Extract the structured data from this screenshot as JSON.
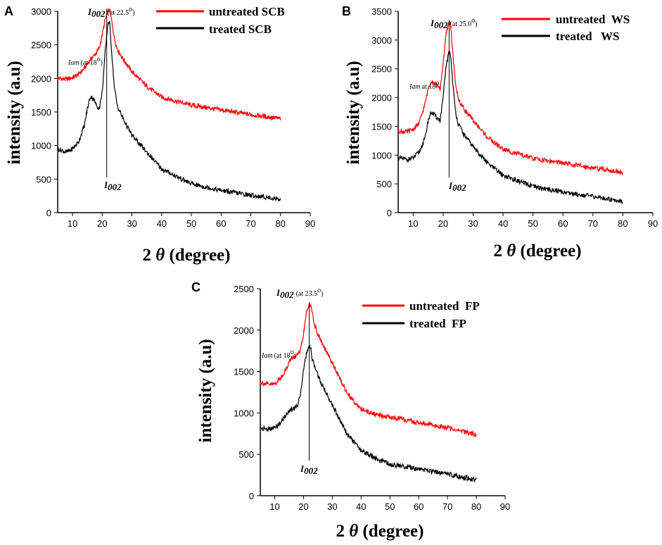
{
  "colors": {
    "untreated": "#ff0000",
    "treated": "#000000"
  },
  "chart_data": [
    {
      "panel": "A",
      "type": "line",
      "xlabel": "2 θ (degree)",
      "ylabel": "intensity (a.u)",
      "xlim": [
        5,
        90
      ],
      "ylim": [
        0,
        3000
      ],
      "xticks": [
        10,
        20,
        30,
        40,
        50,
        60,
        70,
        80,
        90
      ],
      "yticks": [
        0,
        500,
        1000,
        1500,
        2000,
        2500,
        3000
      ],
      "legend_position": "top-right",
      "series": [
        {
          "name": "untreated SCB",
          "color": "#ff0000",
          "x": [
            5,
            8,
            10,
            12,
            14,
            16,
            18,
            19,
            20,
            21,
            22,
            22.5,
            23,
            24,
            25,
            27,
            30,
            35,
            40,
            45,
            50,
            60,
            70,
            80
          ],
          "y": [
            2000,
            1990,
            2010,
            2060,
            2150,
            2280,
            2380,
            2450,
            2650,
            2880,
            3000,
            3020,
            2900,
            2620,
            2440,
            2290,
            2100,
            1880,
            1720,
            1660,
            1600,
            1530,
            1460,
            1400
          ]
        },
        {
          "name": "treated  SCB",
          "color": "#000000",
          "x": [
            5,
            8,
            10,
            12,
            14,
            15,
            16,
            17,
            18,
            19,
            20,
            21,
            22,
            22.5,
            23,
            24,
            25,
            27,
            30,
            35,
            40,
            45,
            50,
            60,
            70,
            80
          ],
          "y": [
            950,
            900,
            950,
            1050,
            1300,
            1550,
            1730,
            1700,
            1600,
            1550,
            1800,
            2400,
            2850,
            2820,
            2500,
            1900,
            1600,
            1400,
            1150,
            900,
            650,
            540,
            430,
            330,
            260,
            200
          ]
        }
      ],
      "annotations": {
        "peak_main": "I",
        "peak_sub": "002",
        "peak_note": "(at 22.5",
        "amorphous_main": "Iam",
        "amorphous_note": "(at 18",
        "bottom_main": "I",
        "bottom_sub": "002",
        "degree_symbol": "o",
        "close_paren": ")"
      },
      "peak_x": 21.5,
      "amorphous_label_at": [
        17,
        2400
      ]
    },
    {
      "panel": "B",
      "type": "line",
      "xlabel": "2 θ (degree)",
      "ylabel": "intensity (a.u)",
      "xlim": [
        5,
        90
      ],
      "ylim": [
        0,
        3500
      ],
      "xticks": [
        10,
        20,
        30,
        40,
        50,
        60,
        70,
        80,
        90
      ],
      "yticks": [
        0,
        500,
        1000,
        1500,
        2000,
        2500,
        3000,
        3500
      ],
      "legend_position": "top-right",
      "series": [
        {
          "name": "untreated  WS",
          "color": "#ff0000",
          "x": [
            5,
            8,
            10,
            12,
            14,
            15,
            16,
            17,
            18,
            19,
            20,
            21,
            22,
            22.5,
            23,
            24,
            25,
            27,
            30,
            35,
            40,
            50,
            60,
            70,
            80
          ],
          "y": [
            1420,
            1400,
            1450,
            1550,
            1900,
            2150,
            2300,
            2250,
            2200,
            2150,
            2600,
            3100,
            3320,
            3280,
            2900,
            2300,
            1980,
            1800,
            1600,
            1300,
            1100,
            940,
            860,
            780,
            700
          ]
        },
        {
          "name": "treated   WS",
          "color": "#000000",
          "x": [
            5,
            8,
            10,
            12,
            14,
            15,
            16,
            17,
            18,
            19,
            20,
            21,
            22,
            22.5,
            23,
            24,
            25,
            27,
            30,
            35,
            40,
            50,
            60,
            70,
            80
          ],
          "y": [
            950,
            920,
            950,
            1050,
            1300,
            1600,
            1750,
            1700,
            1650,
            1600,
            2000,
            2550,
            2800,
            2750,
            2400,
            1800,
            1550,
            1350,
            1150,
            850,
            650,
            450,
            360,
            280,
            200
          ]
        }
      ],
      "annotations": {
        "peak_main": "I",
        "peak_sub": "002",
        "peak_note": "(at 25.0",
        "amorphous_main": "Iam",
        "amorphous_note": "at 18",
        "bottom_main": "I",
        "bottom_sub": "002",
        "degree_symbol": "o",
        "close_paren": ")"
      },
      "peak_x": 22,
      "amorphous_label_at": [
        16,
        2300
      ]
    },
    {
      "panel": "C",
      "type": "line",
      "xlabel": "2 θ (degree)",
      "ylabel": "intensity (a.u)",
      "xlim": [
        5,
        90
      ],
      "ylim": [
        0,
        2500
      ],
      "xticks": [
        10,
        20,
        30,
        40,
        50,
        60,
        70,
        80,
        90
      ],
      "yticks": [
        0,
        500,
        1000,
        1500,
        2000,
        2500
      ],
      "legend_position": "top-right",
      "series": [
        {
          "name": "untreated  FP",
          "color": "#ff0000",
          "x": [
            5,
            8,
            10,
            12,
            14,
            15,
            16,
            17,
            18,
            19,
            20,
            21,
            22,
            22.5,
            23,
            24,
            25,
            27,
            30,
            35,
            40,
            45,
            50,
            60,
            70,
            80
          ],
          "y": [
            1370,
            1340,
            1350,
            1420,
            1530,
            1620,
            1660,
            1680,
            1700,
            1750,
            1950,
            2200,
            2320,
            2300,
            2200,
            2050,
            1950,
            1800,
            1600,
            1250,
            1040,
            980,
            950,
            880,
            820,
            740
          ]
        },
        {
          "name": "treated  FP",
          "color": "#000000",
          "x": [
            5,
            8,
            10,
            12,
            14,
            15,
            16,
            17,
            18,
            19,
            20,
            21,
            22,
            22.5,
            23,
            24,
            25,
            27,
            30,
            35,
            40,
            45,
            50,
            60,
            70,
            80
          ],
          "y": [
            820,
            800,
            820,
            880,
            980,
            1030,
            1050,
            1060,
            1100,
            1250,
            1500,
            1720,
            1800,
            1780,
            1650,
            1550,
            1450,
            1300,
            1100,
            750,
            550,
            450,
            380,
            320,
            260,
            190
          ]
        }
      ],
      "annotations": {
        "peak_main": "I",
        "peak_sub": "002",
        "peak_note": "(at 23.5",
        "amorphous_main": "Iam",
        "amorphous_note": "(at 18",
        "bottom_main": "I",
        "bottom_sub": "002",
        "degree_symbol": "o",
        "close_paren": ")"
      },
      "peak_x": 22,
      "amorphous_label_at": [
        17,
        1700
      ]
    }
  ]
}
